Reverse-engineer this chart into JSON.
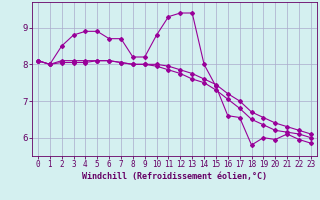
{
  "title": "",
  "xlabel": "Windchill (Refroidissement éolien,°C)",
  "ylabel": "",
  "bg_color": "#d4f0f0",
  "line_color": "#990099",
  "grid_color": "#aaaacc",
  "axis_color": "#660066",
  "xlim": [
    -0.5,
    23.5
  ],
  "ylim": [
    5.5,
    9.7
  ],
  "yticks": [
    6,
    7,
    8,
    9
  ],
  "xticks": [
    0,
    1,
    2,
    3,
    4,
    5,
    6,
    7,
    8,
    9,
    10,
    11,
    12,
    13,
    14,
    15,
    16,
    17,
    18,
    19,
    20,
    21,
    22,
    23
  ],
  "line1_x": [
    0,
    1,
    2,
    3,
    4,
    5,
    6,
    7,
    8,
    9,
    10,
    11,
    12,
    13,
    14,
    15,
    16,
    17,
    18,
    19,
    20,
    21,
    22,
    23
  ],
  "line1_y": [
    8.1,
    8.0,
    8.5,
    8.8,
    8.9,
    8.9,
    8.7,
    8.7,
    8.2,
    8.2,
    8.8,
    9.3,
    9.4,
    9.4,
    8.0,
    7.4,
    6.6,
    6.55,
    5.8,
    6.0,
    5.95,
    6.1,
    5.95,
    5.85
  ],
  "line2_x": [
    0,
    1,
    2,
    3,
    4,
    5,
    6,
    7,
    8,
    9,
    10,
    11,
    12,
    13,
    14,
    15,
    16,
    17,
    18,
    19,
    20,
    21,
    22,
    23
  ],
  "line2_y": [
    8.1,
    8.0,
    8.1,
    8.1,
    8.1,
    8.1,
    8.1,
    8.05,
    8.0,
    8.0,
    8.0,
    7.95,
    7.85,
    7.75,
    7.6,
    7.45,
    7.2,
    7.0,
    6.7,
    6.55,
    6.4,
    6.3,
    6.2,
    6.1
  ],
  "line3_x": [
    0,
    1,
    2,
    3,
    4,
    5,
    6,
    7,
    8,
    9,
    10,
    11,
    12,
    13,
    14,
    15,
    16,
    17,
    18,
    19,
    20,
    21,
    22,
    23
  ],
  "line3_y": [
    8.1,
    8.0,
    8.05,
    8.05,
    8.05,
    8.1,
    8.1,
    8.05,
    8.0,
    8.0,
    7.95,
    7.85,
    7.75,
    7.6,
    7.5,
    7.3,
    7.05,
    6.8,
    6.5,
    6.35,
    6.2,
    6.15,
    6.1,
    6.0
  ],
  "tick_fontsize": 5.5,
  "xlabel_fontsize": 6.0,
  "marker_size": 2.0,
  "line_width": 0.8
}
